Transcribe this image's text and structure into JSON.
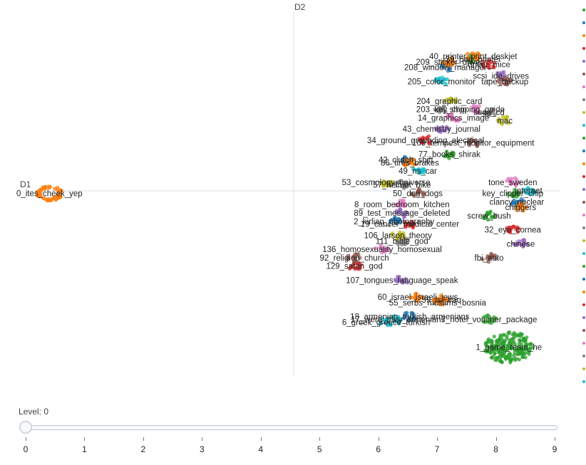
{
  "chart_data": {
    "type": "scatter",
    "title": "",
    "xlabel": "D1",
    "ylabel": "D2",
    "clusters": [
      {
        "label": "0_ites_cheek_yep",
        "x": -3.9,
        "y": 0.0,
        "color": "#ff7f0e"
      },
      {
        "label": "1_game_team_he",
        "x": 7.7,
        "y": -5.5,
        "color": "#2ca02c"
      },
      {
        "label": "7_hotel_voucher_package",
        "x": 7.2,
        "y": -4.5,
        "color": "#2ca02c"
      },
      {
        "label": "6_greek_greece_turkish",
        "x": 4.6,
        "y": -4.6,
        "color": "#17becf"
      },
      {
        "label": "17_were_they_armenians",
        "x": 4.9,
        "y": -4.5,
        "color": "#17becf"
      },
      {
        "label": "18_armenian_turkish_armenians",
        "x": 5.2,
        "y": -4.4,
        "color": "#1f77b4"
      },
      {
        "label": "55_serbs_muslims_bosnia",
        "x": 5.9,
        "y": -3.9,
        "color": "#ff7f0e"
      },
      {
        "label": "59_isi_iraq",
        "x": 6.0,
        "y": -3.8,
        "color": "#ff7f0e"
      },
      {
        "label": "60_israel_israeli_jews",
        "x": 5.4,
        "y": -3.7,
        "color": "#ff7f0e"
      },
      {
        "label": "107_tongues_language_speak",
        "x": 5.0,
        "y": -3.1,
        "color": "#9467bd"
      },
      {
        "label": "129_satan_god",
        "x": 3.8,
        "y": -2.6,
        "color": "#d62728"
      },
      {
        "label": "92_religion_church",
        "x": 3.8,
        "y": -2.3,
        "color": "#8c564b"
      },
      {
        "label": "136_homosexuality_homosexual",
        "x": 4.5,
        "y": -2.0,
        "color": "#e377c2"
      },
      {
        "label": "111_bible_god",
        "x": 5.0,
        "y": -1.7,
        "color": "#7f7f7f"
      },
      {
        "label": "106_larson_theory",
        "x": 4.9,
        "y": -1.5,
        "color": "#bcbd22"
      },
      {
        "label": "2_kirlian_photography",
        "x": 4.8,
        "y": -1.0,
        "color": "#1f77b4"
      },
      {
        "label": "19_cancer_medical_center",
        "x": 5.2,
        "y": -1.1,
        "color": "#d62728"
      },
      {
        "label": "89_test_message_deleted",
        "x": 5.0,
        "y": -0.7,
        "color": "#9467bd"
      },
      {
        "label": "8_room_bedroom_kitchen",
        "x": 5.0,
        "y": -0.4,
        "color": "#e377c2"
      },
      {
        "label": "50_dog_dogs",
        "x": 5.4,
        "y": 0.0,
        "color": "#8c564b"
      },
      {
        "label": "57_helmet_bike",
        "x": 5.0,
        "y": 0.3,
        "color": "#7f7f7f"
      },
      {
        "label": "53_cosmology_universe",
        "x": 4.6,
        "y": 0.4,
        "color": "#bcbd22"
      },
      {
        "label": "49_ns_car",
        "x": 5.4,
        "y": 0.8,
        "color": "#17becf"
      },
      {
        "label": "42_clutch_shift",
        "x": 5.1,
        "y": 1.2,
        "color": "#1f77b4"
      },
      {
        "label": "86_tires_brakes",
        "x": 5.2,
        "y": 1.1,
        "color": "#ff7f0e"
      },
      {
        "label": "77_books_shirak",
        "x": 6.2,
        "y": 1.4,
        "color": "#2ca02c"
      },
      {
        "label": "34_ground_grounding_electrical",
        "x": 5.6,
        "y": 1.9,
        "color": "#d62728"
      },
      {
        "label": "43_chemistry_journal",
        "x": 6.0,
        "y": 2.3,
        "color": "#9467bd"
      },
      {
        "label": "109_tempest_monitor_equipment",
        "x": 6.8,
        "y": 1.8,
        "color": "#8c564b"
      },
      {
        "label": "14_graphics_image",
        "x": 6.3,
        "y": 2.7,
        "color": "#e377c2"
      },
      {
        "label": "203_key_chip",
        "x": 6.0,
        "y": 3.0,
        "color": "#7f7f7f"
      },
      {
        "label": "204_graphic_card",
        "x": 6.2,
        "y": 3.3,
        "color": "#bcbd22"
      },
      {
        "label": "205_color_monitor",
        "x": 6.0,
        "y": 4.0,
        "color": "#17becf"
      },
      {
        "label": "208_window_manager",
        "x": 6.1,
        "y": 4.5,
        "color": "#1f77b4"
      },
      {
        "label": "209_sticker_driver",
        "x": 6.2,
        "y": 4.7,
        "color": "#ff7f0e"
      },
      {
        "label": "39_port_printer",
        "x": 6.8,
        "y": 4.8,
        "color": "#2ca02c"
      },
      {
        "label": "40_printer_print_deskjet",
        "x": 6.8,
        "y": 4.9,
        "color": "#ff7f0e"
      },
      {
        "label": "driver_mice",
        "x": 7.2,
        "y": 4.6,
        "color": "#d62728"
      },
      {
        "label": "scsi_ide_drives",
        "x": 7.5,
        "y": 4.2,
        "color": "#9467bd"
      },
      {
        "label": "tape_backup",
        "x": 7.6,
        "y": 4.0,
        "color": "#8c564b"
      },
      {
        "label": "shipping_guide",
        "x": 6.9,
        "y": 3.0,
        "color": "#e377c2"
      },
      {
        "label": "sega_cd",
        "x": 7.2,
        "y": 2.9,
        "color": "#7f7f7f"
      },
      {
        "label": "mac",
        "x": 7.6,
        "y": 2.6,
        "color": "#bcbd22"
      },
      {
        "label": "key_clipper_chip",
        "x": 7.8,
        "y": 0.0,
        "color": "#2ca02c"
      },
      {
        "label": "internet",
        "x": 8.2,
        "y": 0.1,
        "color": "#17becf"
      },
      {
        "label": "clancy_nuclear",
        "x": 7.9,
        "y": -0.3,
        "color": "#1f77b4"
      },
      {
        "label": "chiggers",
        "x": 8.0,
        "y": -0.5,
        "color": "#ff7f0e"
      },
      {
        "label": "screw_bush",
        "x": 7.2,
        "y": -0.8,
        "color": "#2ca02c"
      },
      {
        "label": "32_eye_cornea",
        "x": 7.8,
        "y": -1.3,
        "color": "#d62728"
      },
      {
        "label": "chinese",
        "x": 8.0,
        "y": -1.8,
        "color": "#9467bd"
      },
      {
        "label": "fbi_auto",
        "x": 7.2,
        "y": -2.3,
        "color": "#8c564b"
      },
      {
        "label": "tone_sweden",
        "x": 7.8,
        "y": 0.4,
        "color": "#e377c2"
      }
    ],
    "xlim": [
      -4.5,
      9.0
    ],
    "ylim": [
      -6.5,
      6.5
    ],
    "legend": "right",
    "grid": false
  },
  "axes": {
    "x_title": "D1",
    "y_title": "D2"
  },
  "slider": {
    "label": "Level: 0",
    "value": 0,
    "min": 0,
    "max": 9,
    "ticks": [
      "0",
      "1",
      "2",
      "3",
      "4",
      "5",
      "6",
      "7",
      "8",
      "9"
    ]
  },
  "legend_colors": [
    "#2ca02c",
    "#1f77b4",
    "#ff7f0e",
    "#d62728",
    "#9467bd",
    "#8c564b",
    "#e377c2",
    "#7f7f7f",
    "#bcbd22",
    "#17becf",
    "#2ca02c",
    "#1f77b4",
    "#ff7f0e",
    "#d62728",
    "#9467bd",
    "#8c564b",
    "#e377c2",
    "#7f7f7f",
    "#bcbd22",
    "#17becf",
    "#2ca02c",
    "#1f77b4",
    "#ff7f0e",
    "#d62728",
    "#9467bd",
    "#8c564b",
    "#e377c2",
    "#7f7f7f",
    "#bcbd22",
    "#17becf"
  ]
}
